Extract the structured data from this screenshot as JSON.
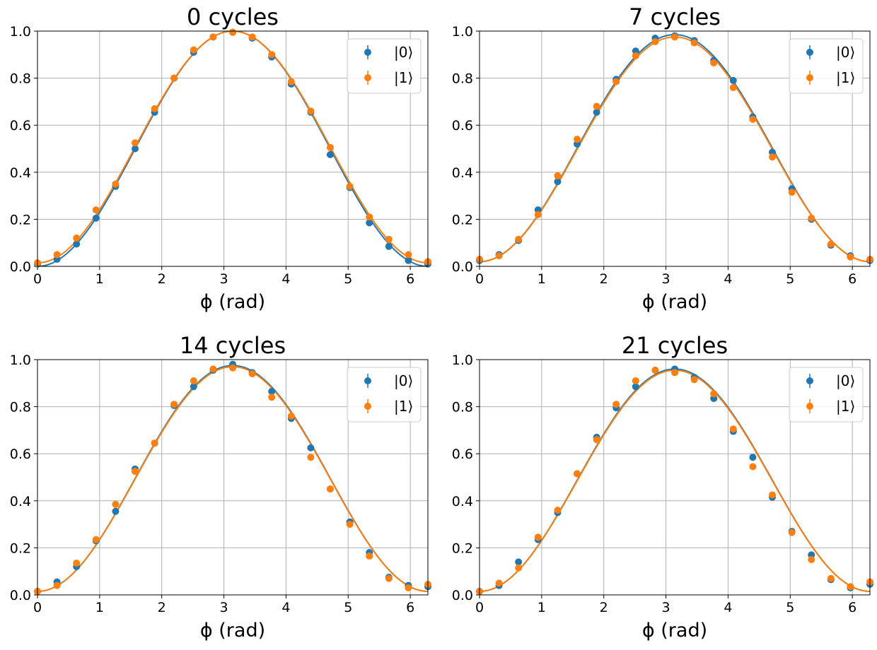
{
  "chart_data": [
    {
      "type": "scatter",
      "title": "0 cycles",
      "xlabel": "ϕ (rad)",
      "ylabel": "",
      "xlim": [
        0,
        6.283
      ],
      "ylim": [
        0,
        1.0
      ],
      "xticks": [
        "0",
        "1",
        "2",
        "3",
        "4",
        "5",
        "6"
      ],
      "yticks": [
        "0.0",
        "0.2",
        "0.4",
        "0.6",
        "0.8",
        "1.0"
      ],
      "grid": true,
      "legend_position": "upper right",
      "x": [
        0,
        0.314,
        0.628,
        0.942,
        1.257,
        1.571,
        1.885,
        2.199,
        2.513,
        2.827,
        3.142,
        3.456,
        3.77,
        4.084,
        4.398,
        4.712,
        5.027,
        5.341,
        5.655,
        5.969,
        6.283
      ],
      "series": [
        {
          "name": "|0⟩",
          "color": "#1f77b4",
          "fit": [
            0.0,
            1.0,
            3.142
          ],
          "values": [
            0.01,
            0.03,
            0.095,
            0.205,
            0.34,
            0.5,
            0.655,
            0.8,
            0.91,
            0.975,
            0.995,
            0.97,
            0.89,
            0.775,
            0.655,
            0.475,
            0.335,
            0.185,
            0.085,
            0.025,
            0.01
          ]
        },
        {
          "name": "|1⟩",
          "color": "#ff7f0e",
          "fit": [
            0.015,
            0.985,
            3.142
          ],
          "values": [
            0.015,
            0.05,
            0.12,
            0.24,
            0.35,
            0.525,
            0.67,
            0.8,
            0.92,
            0.975,
            0.995,
            0.975,
            0.9,
            0.785,
            0.66,
            0.505,
            0.34,
            0.21,
            0.115,
            0.05,
            0.02
          ]
        }
      ]
    },
    {
      "type": "scatter",
      "title": "7 cycles",
      "xlabel": "ϕ (rad)",
      "ylabel": "",
      "xlim": [
        0,
        6.283
      ],
      "ylim": [
        0,
        1.0
      ],
      "xticks": [
        "0",
        "1",
        "2",
        "3",
        "4",
        "5",
        "6"
      ],
      "yticks": [
        "0.0",
        "0.2",
        "0.4",
        "0.6",
        "0.8",
        "1.0"
      ],
      "grid": true,
      "legend_position": "upper right",
      "x": [
        0,
        0.314,
        0.628,
        0.942,
        1.257,
        1.571,
        1.885,
        2.199,
        2.513,
        2.827,
        3.142,
        3.456,
        3.77,
        4.084,
        4.398,
        4.712,
        5.027,
        5.341,
        5.655,
        5.969,
        6.283
      ],
      "series": [
        {
          "name": "|0⟩",
          "color": "#1f77b4",
          "fit": [
            0.02,
            0.965,
            3.142
          ],
          "values": [
            0.025,
            0.05,
            0.11,
            0.24,
            0.36,
            0.52,
            0.655,
            0.795,
            0.915,
            0.97,
            0.98,
            0.96,
            0.875,
            0.79,
            0.635,
            0.485,
            0.33,
            0.2,
            0.09,
            0.045,
            0.025
          ]
        },
        {
          "name": "|1⟩",
          "color": "#ff7f0e",
          "fit": [
            0.02,
            0.955,
            3.142
          ],
          "values": [
            0.03,
            0.045,
            0.115,
            0.22,
            0.385,
            0.54,
            0.68,
            0.785,
            0.895,
            0.955,
            0.975,
            0.95,
            0.865,
            0.76,
            0.625,
            0.465,
            0.315,
            0.205,
            0.095,
            0.04,
            0.03
          ]
        }
      ]
    },
    {
      "type": "scatter",
      "title": "14 cycles",
      "xlabel": "ϕ (rad)",
      "ylabel": "",
      "xlim": [
        0,
        6.283
      ],
      "ylim": [
        0,
        1.0
      ],
      "xticks": [
        "0",
        "1",
        "2",
        "3",
        "4",
        "5",
        "6"
      ],
      "yticks": [
        "0.0",
        "0.2",
        "0.4",
        "0.6",
        "0.8",
        "1.0"
      ],
      "grid": true,
      "legend_position": "upper right",
      "x": [
        0,
        0.314,
        0.628,
        0.942,
        1.257,
        1.571,
        1.885,
        2.199,
        2.513,
        2.827,
        3.142,
        3.456,
        3.77,
        4.084,
        4.398,
        4.712,
        5.027,
        5.341,
        5.655,
        5.969,
        6.283
      ],
      "series": [
        {
          "name": "|0⟩",
          "color": "#1f77b4",
          "fit": [
            0.015,
            0.96,
            3.142
          ],
          "values": [
            0.015,
            0.055,
            0.12,
            0.23,
            0.355,
            0.535,
            0.645,
            0.805,
            0.885,
            0.955,
            0.98,
            0.945,
            0.865,
            0.75,
            0.625,
            0.45,
            0.31,
            0.18,
            0.075,
            0.04,
            0.035
          ]
        },
        {
          "name": "|1⟩",
          "color": "#ff7f0e",
          "fit": [
            0.015,
            0.955,
            3.142
          ],
          "values": [
            0.015,
            0.04,
            0.135,
            0.235,
            0.385,
            0.525,
            0.645,
            0.81,
            0.91,
            0.96,
            0.965,
            0.94,
            0.84,
            0.76,
            0.585,
            0.45,
            0.3,
            0.165,
            0.07,
            0.03,
            0.045
          ]
        }
      ]
    },
    {
      "type": "scatter",
      "title": "21 cycles",
      "xlabel": "ϕ (rad)",
      "ylabel": "",
      "xlim": [
        0,
        6.283
      ],
      "ylim": [
        0,
        1.0
      ],
      "xticks": [
        "0",
        "1",
        "2",
        "3",
        "4",
        "5",
        "6"
      ],
      "yticks": [
        "0.0",
        "0.2",
        "0.4",
        "0.6",
        "0.8",
        "1.0"
      ],
      "grid": true,
      "legend_position": "upper right",
      "x": [
        0,
        0.314,
        0.628,
        0.942,
        1.257,
        1.571,
        1.885,
        2.199,
        2.513,
        2.827,
        3.142,
        3.456,
        3.77,
        4.084,
        4.398,
        4.712,
        5.027,
        5.341,
        5.655,
        5.969,
        6.283
      ],
      "series": [
        {
          "name": "|0⟩",
          "color": "#1f77b4",
          "fit": [
            0.015,
            0.945,
            3.142
          ],
          "values": [
            0.015,
            0.04,
            0.14,
            0.235,
            0.35,
            0.515,
            0.67,
            0.795,
            0.885,
            0.955,
            0.96,
            0.925,
            0.835,
            0.695,
            0.585,
            0.415,
            0.27,
            0.17,
            0.065,
            0.03,
            0.045
          ]
        },
        {
          "name": "|1⟩",
          "color": "#ff7f0e",
          "fit": [
            0.015,
            0.94,
            3.142
          ],
          "values": [
            0.015,
            0.05,
            0.115,
            0.245,
            0.36,
            0.515,
            0.66,
            0.81,
            0.91,
            0.955,
            0.945,
            0.915,
            0.855,
            0.705,
            0.545,
            0.425,
            0.265,
            0.15,
            0.07,
            0.035,
            0.055
          ]
        }
      ]
    }
  ]
}
